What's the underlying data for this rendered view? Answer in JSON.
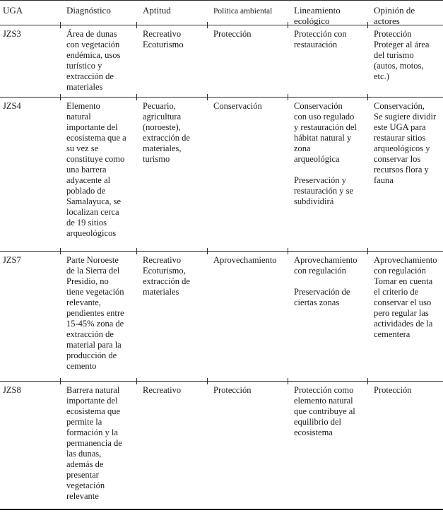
{
  "table": {
    "columns": [
      "UGA",
      "Diagnóstico",
      "Aptitud",
      "Política ambiental",
      "Lineamiento\necológico",
      "Opinión de\nactores"
    ],
    "rows": [
      {
        "uga": "JZS3",
        "diagnostico": "Área de dunas\ncon vegetación\nendémica, usos\nturístico y\nextracción de\nmateriales",
        "aptitud": "Recreativo\nEcoturismo",
        "politica_ambiental": "Protección",
        "lineamiento_ecologico": "Protección con\nrestauración",
        "opinion_actores": "Protección\nProteger al área\ndel turismo\n(autos, motos,\netc.)"
      },
      {
        "uga": "JZS4",
        "diagnostico": "Elemento\nnatural\nimportante del\necosistema que a\nsu vez se\nconstituye como\nuna barrera\nadyacente al\npoblado de\nSamalayuca, se\nlocalizan cerca\nde 19 sitios\narqueológicos",
        "aptitud": "Pecuario,\nagricultura\n(noroeste),\nextracción de\nmateriales,\nturismo",
        "politica_ambiental": "Conservación",
        "lineamiento_ecologico": "Conservación\ncon uso regulado\ny restauración del\nhábitat natural y\nzona\narqueológica\n\nPreservación y\nrestauración y se\nsubdividirá",
        "opinion_actores": "Conservación,\nSe sugiere dividir\neste UGA para\nrestaurar sitios\narqueológicos y\nconservar los\nrecursos flora y\nfauna"
      },
      {
        "uga": "JZS7",
        "diagnostico": "Parte Noroeste\nde la Sierra del\nPresidio, no\ntiene vegetación\nrelevante,\npendientes entre\n15-45% zona de\nextracción de\nmaterial para la\nproducción de\ncemento",
        "aptitud": "Recreativo\nEcoturismo,\nextracción de\nmateriales",
        "politica_ambiental": "Aprovechamiento",
        "lineamiento_ecologico": "Aprovechamiento\ncon regulación\n\nPreservación de\nciertas zonas",
        "opinion_actores": "Aprovechamiento\ncon regulación\nTomar en cuenta\nel criterio de\nconservar el uso\npero regular las\nactividades de la\ncementera"
      },
      {
        "uga": "JZS8",
        "diagnostico": "Barrera natural\nimportante del\necosistema que\npermite la\nformación y la\npermanencia de\nlas dunas,\nademás de\npresentar\nvegetación\nrelevante",
        "aptitud": "Recreativo",
        "politica_ambiental": "Protección",
        "lineamiento_ecologico": "Protección como\nelemento natural\nque contribuye al\nequilibrio del\necosistema",
        "opinion_actores": "Protección"
      }
    ]
  }
}
